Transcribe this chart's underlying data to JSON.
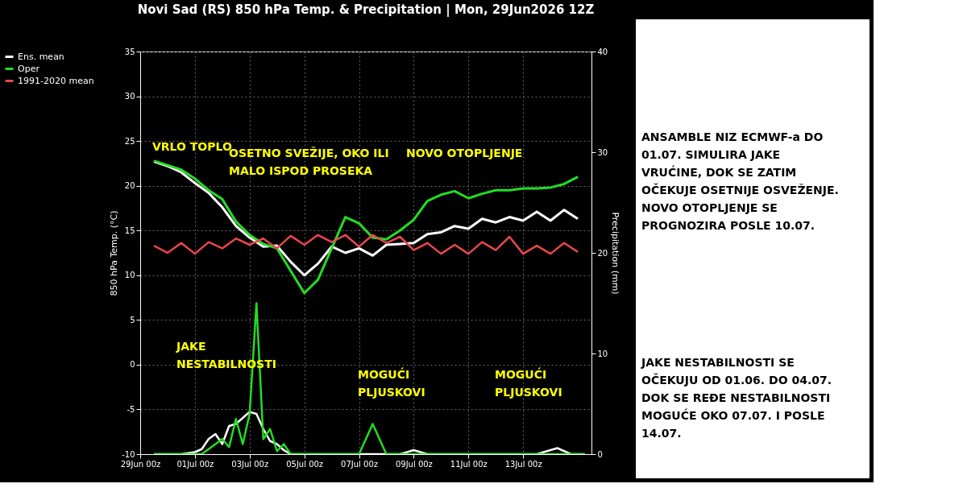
{
  "chart_data": {
    "type": "line",
    "title": "Novi Sad  (RS)  850 hPa Temp. & Precipitation | Mon, 29Jun2026 12Z",
    "ylabel": "850 hPa Temp. (°C)",
    "y2label": "Precipitation (mm)",
    "xlim": [
      "2026-06-29",
      "2026-07-15T12:00"
    ],
    "xticks": [
      {
        "value": "2026-06-29",
        "label": "29Jun 00z"
      },
      {
        "value": "2026-07-01",
        "label": "01Jul 00z"
      },
      {
        "value": "2026-07-03",
        "label": "03Jul 00z"
      },
      {
        "value": "2026-07-05",
        "label": "05Jul 00z"
      },
      {
        "value": "2026-07-07",
        "label": "07Jul 00z"
      },
      {
        "value": "2026-07-09",
        "label": "09Jul 00z"
      },
      {
        "value": "2026-07-11",
        "label": "11Jul 00z"
      },
      {
        "value": "2026-07-13",
        "label": "13Jul 00z"
      }
    ],
    "ylim": [
      -10,
      35
    ],
    "yticks": [
      -10,
      -5,
      0,
      5,
      10,
      15,
      20,
      25,
      30,
      35
    ],
    "y2lim": [
      0,
      40
    ],
    "y2ticks": [
      0,
      10,
      20,
      30,
      40
    ],
    "x": [
      "2026-06-29T12:00",
      "2026-06-30",
      "2026-06-30T12:00",
      "2026-07-01",
      "2026-07-01T12:00",
      "2026-07-02",
      "2026-07-02T12:00",
      "2026-07-03",
      "2026-07-03T12:00",
      "2026-07-04",
      "2026-07-04T12:00",
      "2026-07-05",
      "2026-07-05T12:00",
      "2026-07-06",
      "2026-07-06T12:00",
      "2026-07-07",
      "2026-07-07T12:00",
      "2026-07-08",
      "2026-07-08T12:00",
      "2026-07-09",
      "2026-07-09T12:00",
      "2026-07-10",
      "2026-07-10T12:00",
      "2026-07-11",
      "2026-07-11T12:00",
      "2026-07-12",
      "2026-07-12T12:00",
      "2026-07-13",
      "2026-07-13T12:00",
      "2026-07-14",
      "2026-07-14T12:00",
      "2026-07-15"
    ],
    "series": [
      {
        "name": "Ens. mean",
        "color": "#ffffff",
        "values": [
          22.7,
          22.2,
          21.5,
          20.3,
          19.2,
          17.6,
          15.5,
          14.2,
          13.2,
          13.3,
          11.5,
          10.0,
          11.3,
          13.2,
          12.5,
          13.0,
          12.2,
          13.4,
          13.5,
          13.6,
          14.6,
          14.8,
          15.5,
          15.2,
          16.3,
          15.9,
          16.5,
          16.1,
          17.1,
          16.1,
          17.3,
          16.3
        ]
      },
      {
        "name": "Oper",
        "color": "#22dd22",
        "values": [
          22.8,
          22.3,
          21.8,
          20.8,
          19.5,
          18.5,
          16.0,
          14.5,
          13.5,
          13.0,
          10.5,
          8.0,
          9.5,
          13.0,
          16.5,
          15.8,
          14.2,
          14.0,
          15.0,
          16.2,
          18.3,
          19.0,
          19.4,
          18.6,
          19.1,
          19.5,
          19.5,
          19.7,
          19.7,
          19.8,
          20.2,
          21.0
        ]
      },
      {
        "name": "1991-2020 mean",
        "color": "#e8474c",
        "values": [
          13.3,
          12.5,
          13.6,
          12.4,
          13.7,
          13.0,
          14.1,
          13.4,
          14.1,
          13.0,
          14.4,
          13.4,
          14.5,
          13.7,
          14.5,
          13.2,
          14.5,
          13.6,
          14.3,
          12.8,
          13.6,
          12.4,
          13.4,
          12.4,
          13.7,
          12.8,
          14.3,
          12.4,
          13.3,
          12.4,
          13.6,
          12.6
        ]
      },
      {
        "color": "#ffffff",
        "axis": "y2",
        "x": [
          "2026-06-29T12:00",
          "2026-06-30T12:00",
          "2026-07-01",
          "2026-07-01T06:00",
          "2026-07-01T12:00",
          "2026-07-01T18:00",
          "2026-07-02",
          "2026-07-02T06:00",
          "2026-07-02T12:00",
          "2026-07-02T18:00",
          "2026-07-03",
          "2026-07-03T06:00",
          "2026-07-03T12:00",
          "2026-07-03T18:00",
          "2026-07-04",
          "2026-07-04T06:00",
          "2026-07-04T12:00",
          "2026-07-08T12:00",
          "2026-07-09",
          "2026-07-09T12:00",
          "2026-07-13T12:00",
          "2026-07-14T06:00",
          "2026-07-14T18:00",
          "2026-07-15T06:00"
        ],
        "values": [
          0,
          0,
          0.2,
          0.5,
          1.5,
          2.0,
          1.0,
          2.8,
          3.0,
          3.6,
          4.2,
          4.0,
          2.5,
          1.3,
          1.0,
          0.4,
          0,
          0,
          0.4,
          0,
          0,
          0.6,
          0,
          0
        ]
      },
      {
        "color": "#22dd22",
        "axis": "y2",
        "x": [
          "2026-06-29T12:00",
          "2026-07-01T06:00",
          "2026-07-01T12:00",
          "2026-07-02",
          "2026-07-02T06:00",
          "2026-07-02T12:00",
          "2026-07-02T18:00",
          "2026-07-03",
          "2026-07-03T06:00",
          "2026-07-03T12:00",
          "2026-07-03T18:00",
          "2026-07-04",
          "2026-07-04T06:00",
          "2026-07-04T12:00",
          "2026-07-07",
          "2026-07-07T12:00",
          "2026-07-08",
          "2026-07-15T06:00"
        ],
        "values": [
          0,
          0,
          0.5,
          1.5,
          0.7,
          3.5,
          1.0,
          4.0,
          15.0,
          1.5,
          2.5,
          0.3,
          1.0,
          0,
          0,
          3.0,
          0,
          0
        ]
      }
    ],
    "annotations": [
      "VRLO TOPLO",
      "OSETNO SVEŽIJE, OKO ILI MALO ISPOD PROSEKA",
      "NOVO OTOPLJENJE",
      "JAKE NESTABILNOSTI",
      "MOGUĆI PLJUSKOVI",
      "MOGUĆI PLJUSKOVI",
      "ANSAMBLE NIZ ECMWF-a DO 01.07. SIMULIRA JAKE VRUĆINE, DOK SE ZATIM OČEKUJE OSETNIJE OSVEŽENJE. NOVO OTOPLJENJE SE PROGNOZIRA POSLE 10.07.",
      "JAKE NESTABILNOSTI SE OČEKUJU OD 01.06. DO 04.07. DOK SE REĐE NESTABILNOSTI MOGUĆE OKO 07.07. I POSLE 14.07."
    ],
    "grid": true,
    "legend": "left",
    "marker": "none",
    "line_style": "solid"
  }
}
